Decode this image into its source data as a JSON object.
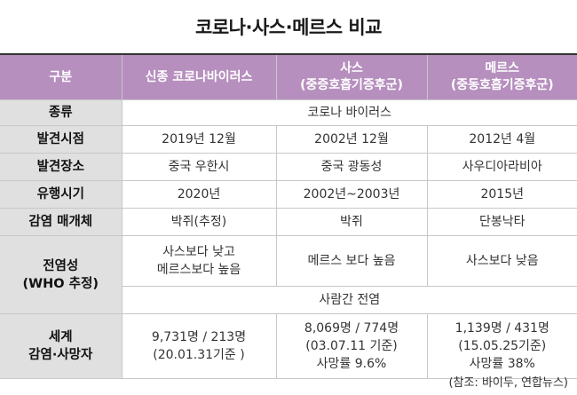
{
  "title": "코로나·사스·메르스 비교",
  "header": {
    "col0": "구분",
    "col1": "신종 코로나바이러스",
    "col2_line1": "사스",
    "col2_line2": "(중증호흡기증후군)",
    "col3_line1": "메르스",
    "col3_line2": "(중동호흡기증후군)"
  },
  "rows": {
    "type": {
      "label": "종류",
      "value": "코로나 바이러스"
    },
    "discovered": {
      "label": "발견시점",
      "covid": "2019년 12월",
      "sars": "2002년 12월",
      "mers": "2012년 4월"
    },
    "place": {
      "label": "발견장소",
      "covid": "중국 우한시",
      "sars": "중국 광동성",
      "mers": "사우디아라비아"
    },
    "period": {
      "label": "유행시기",
      "covid": "2020년",
      "sars": "2002년~2003년",
      "mers": "2015년"
    },
    "vector": {
      "label": "감염 매개체",
      "covid": "박쥐(추정)",
      "sars": "박쥐",
      "mers": "단봉낙타"
    },
    "transmissibility": {
      "label_line1": "전염성",
      "label_line2": "(WHO 추정)",
      "covid_line1": "사스보다 낮고",
      "covid_line2": "메르스보다 높음",
      "sars": "메르스 보다 높음",
      "mers": "사스보다 낮음",
      "common": "사람간 전염"
    },
    "cases": {
      "label_line1": "세계",
      "label_line2": "감염·사망자",
      "covid_line1": "9,731명 / 213명",
      "covid_line2": "(20.01.31기준 )",
      "sars_line1": "8,069명 / 774명",
      "sars_line2": "(03.07.11 기준)",
      "sars_line3": "사망률 9.6%",
      "mers_line1": "1,139명 / 431명",
      "mers_line2": "(15.05.25기준)",
      "mers_line3": "사망률 38%"
    }
  },
  "source": "(참조: 바이두, 연합뉴스)",
  "colors": {
    "header_bg": "#b68fbe",
    "label_bg": "#e0e0e0"
  }
}
